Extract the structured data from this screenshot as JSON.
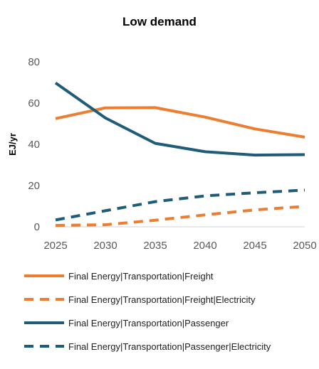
{
  "chart_data": {
    "type": "line",
    "title": "Low demand",
    "xlabel": "",
    "ylabel": "EJ/yr",
    "x": [
      2025,
      2030,
      2035,
      2040,
      2045,
      2050
    ],
    "ylim": [
      0,
      80
    ],
    "yticks": [
      0,
      20,
      40,
      60,
      80
    ],
    "grid": false,
    "legend_position": "bottom",
    "series": [
      {
        "name": "Final Energy|Transportation|Freight",
        "color": "#ED7D31",
        "dash": "solid",
        "values": [
          52.5,
          57.7,
          57.8,
          53.2,
          47.5,
          43.5
        ]
      },
      {
        "name": "Final Energy|Transportation|Freight|Electricity",
        "color": "#ED7D31",
        "dash": "dashed",
        "values": [
          0.7,
          1.0,
          3.2,
          5.8,
          8.2,
          9.9
        ]
      },
      {
        "name": "Final Energy|Transportation|Passenger",
        "color": "#1F5C7A",
        "dash": "solid",
        "values": [
          69.8,
          52.8,
          40.5,
          36.4,
          34.8,
          35.0
        ]
      },
      {
        "name": "Final Energy|Transportation|Passenger|Electricity",
        "color": "#1F5C7A",
        "dash": "dashed",
        "values": [
          3.3,
          7.8,
          12.2,
          15.0,
          16.5,
          17.8
        ]
      }
    ]
  }
}
